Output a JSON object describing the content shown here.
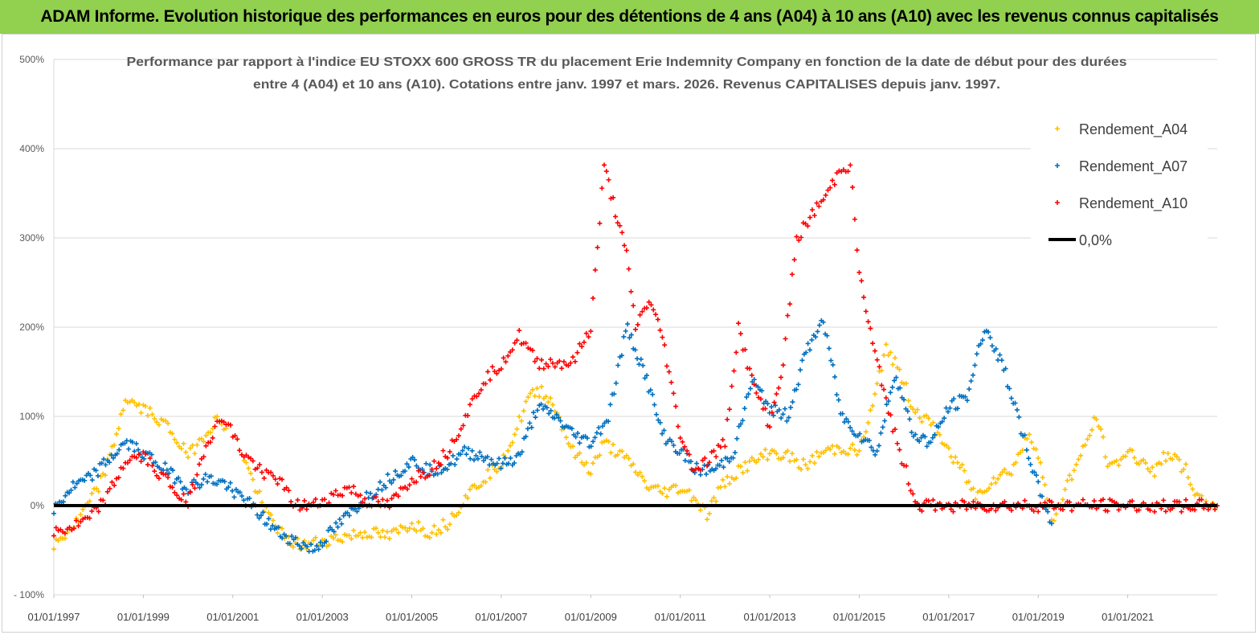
{
  "header": {
    "banner_title": "ADAM Informe. Evolution historique des performances en euros pour des détentions de 4 ans (A04) à 10 ans (A10) avec les revenus connus capitalisés",
    "banner_color": "#92d050"
  },
  "chart_data": {
    "type": "scatter",
    "title_line1": "Performance par rapport à l'indice EU STOXX 600 GROSS TR  du placement Erie Indemnity Company en fonction de la date de début pour des durées",
    "title_line2": "entre 4 (A04) et 10 ans (A10). Cotations entre janv. 1997 et mars. 2026. Revenus CAPITALISES depuis janv. 1997.",
    "xlabel": "",
    "ylabel": "",
    "x_ticks": [
      "01/01/1997",
      "01/01/1999",
      "01/01/2001",
      "01/01/2003",
      "01/01/2005",
      "01/01/2007",
      "01/01/2009",
      "01/01/2011",
      "01/01/2013",
      "01/01/2015",
      "01/01/2017",
      "01/01/2019",
      "01/01/2021"
    ],
    "y_ticks": [
      "500%",
      "400%",
      "300%",
      "200%",
      "100%",
      "0%",
      "- 100%"
    ],
    "xlim": [
      1997.0,
      2023.0
    ],
    "ylim": [
      -100,
      500
    ],
    "grid": "horizontal",
    "legend_position": "top-right",
    "series": [
      {
        "name": "Rendement_A04",
        "color": "#ffc000",
        "x": [
          1997.0,
          1997.5,
          1998.0,
          1998.3,
          1998.6,
          1998.9,
          1999.3,
          1999.6,
          2000.0,
          2000.3,
          2000.6,
          2000.9,
          2001.2,
          2001.5,
          2001.8,
          2002.2,
          2002.6,
          2003.0,
          2003.5,
          2004.0,
          2004.5,
          2005.0,
          2005.4,
          2005.8,
          2006.2,
          2006.6,
          2007.0,
          2007.3,
          2007.6,
          2007.9,
          2008.2,
          2008.6,
          2009.0,
          2009.3,
          2009.6,
          2010.0,
          2010.3,
          2010.6,
          2011.0,
          2011.3,
          2011.6,
          2011.9,
          2012.3,
          2012.7,
          2013.0,
          2013.4,
          2013.8,
          2014.2,
          2014.6,
          2015.0,
          2015.3,
          2015.6,
          2015.9,
          2016.2,
          2016.6,
          2016.9,
          2017.3,
          2017.6,
          2018.0,
          2018.4,
          2018.8,
          2019.0,
          2019.3,
          2019.7,
          2020.0,
          2020.3,
          2020.6,
          2021.0,
          2021.3,
          2021.6,
          2021.9,
          2022.3,
          2022.6,
          2023.0
        ],
        "values": [
          -45,
          -20,
          20,
          60,
          120,
          110,
          100,
          85,
          55,
          75,
          95,
          90,
          60,
          20,
          -10,
          -40,
          -45,
          -40,
          -35,
          -30,
          -35,
          -20,
          -30,
          -20,
          10,
          30,
          50,
          80,
          120,
          130,
          110,
          60,
          40,
          70,
          60,
          40,
          20,
          15,
          20,
          10,
          -10,
          20,
          40,
          50,
          60,
          55,
          45,
          60,
          65,
          60,
          110,
          180,
          150,
          110,
          90,
          70,
          40,
          10,
          30,
          40,
          80,
          60,
          -20,
          30,
          60,
          100,
          40,
          60,
          50,
          40,
          60,
          40,
          5,
          0
        ]
      },
      {
        "name": "Rendement_A07",
        "color": "#0070c0",
        "x": [
          1997.0,
          1997.4,
          1997.8,
          1998.2,
          1998.6,
          1999.0,
          1999.5,
          2000.0,
          2000.4,
          2000.8,
          2001.2,
          2001.6,
          2002.0,
          2002.4,
          2002.8,
          2003.2,
          2003.6,
          2004.0,
          2004.5,
          2005.0,
          2005.4,
          2005.8,
          2006.2,
          2006.6,
          2007.0,
          2007.4,
          2007.8,
          2008.2,
          2008.6,
          2009.0,
          2009.4,
          2009.8,
          2010.2,
          2010.6,
          2011.0,
          2011.4,
          2011.8,
          2012.2,
          2012.6,
          2013.0,
          2013.4,
          2013.8,
          2014.2,
          2014.6,
          2015.0,
          2015.4,
          2015.8,
          2016.2,
          2016.6,
          2017.0,
          2017.4,
          2017.8,
          2018.2,
          2018.6,
          2019.0,
          2019.3
        ],
        "values": [
          -5,
          20,
          30,
          50,
          70,
          60,
          40,
          20,
          30,
          25,
          10,
          -10,
          -30,
          -40,
          -50,
          -30,
          -10,
          10,
          30,
          50,
          40,
          45,
          60,
          55,
          45,
          55,
          110,
          100,
          80,
          70,
          100,
          200,
          150,
          80,
          60,
          40,
          40,
          60,
          140,
          110,
          100,
          170,
          210,
          100,
          80,
          60,
          150,
          80,
          70,
          110,
          120,
          200,
          160,
          90,
          20,
          -20
        ]
      },
      {
        "name": "Rendement_A10",
        "color": "#ff0000",
        "x": [
          1997.0,
          1997.4,
          1997.8,
          1998.2,
          1998.6,
          1999.0,
          1999.5,
          2000.0,
          2000.4,
          2000.8,
          2001.2,
          2001.6,
          2002.0,
          2002.4,
          2002.8,
          2003.2,
          2003.6,
          2004.0,
          2004.5,
          2005.0,
          2005.4,
          2005.8,
          2006.2,
          2006.6,
          2007.0,
          2007.4,
          2007.8,
          2008.2,
          2008.6,
          2009.0,
          2009.3,
          2009.6,
          2009.8,
          2010.0,
          2010.3,
          2010.6,
          2011.0,
          2011.3,
          2011.6,
          2012.0,
          2012.3,
          2012.6,
          2013.0,
          2013.3,
          2013.6,
          2014.0,
          2014.3,
          2014.6,
          2014.8,
          2015.0,
          2015.3,
          2015.6,
          2015.9,
          2016.1,
          2016.3,
          2017.0,
          2018.0,
          2019.0,
          2020.0,
          2021.0,
          2022.0,
          2023.0
        ],
        "values": [
          -30,
          -25,
          -15,
          10,
          50,
          55,
          30,
          0,
          70,
          100,
          60,
          40,
          30,
          0,
          0,
          10,
          20,
          5,
          0,
          30,
          40,
          60,
          100,
          140,
          160,
          190,
          160,
          160,
          160,
          200,
          380,
          320,
          280,
          200,
          230,
          190,
          80,
          40,
          50,
          70,
          200,
          140,
          90,
          160,
          300,
          330,
          350,
          380,
          380,
          260,
          180,
          120,
          60,
          30,
          0,
          0,
          0,
          0,
          0,
          0,
          0,
          0
        ]
      },
      {
        "name": "0,0%",
        "color": "#000000",
        "x": [
          1997.0,
          2023.0
        ],
        "values": [
          0,
          0
        ]
      }
    ]
  }
}
